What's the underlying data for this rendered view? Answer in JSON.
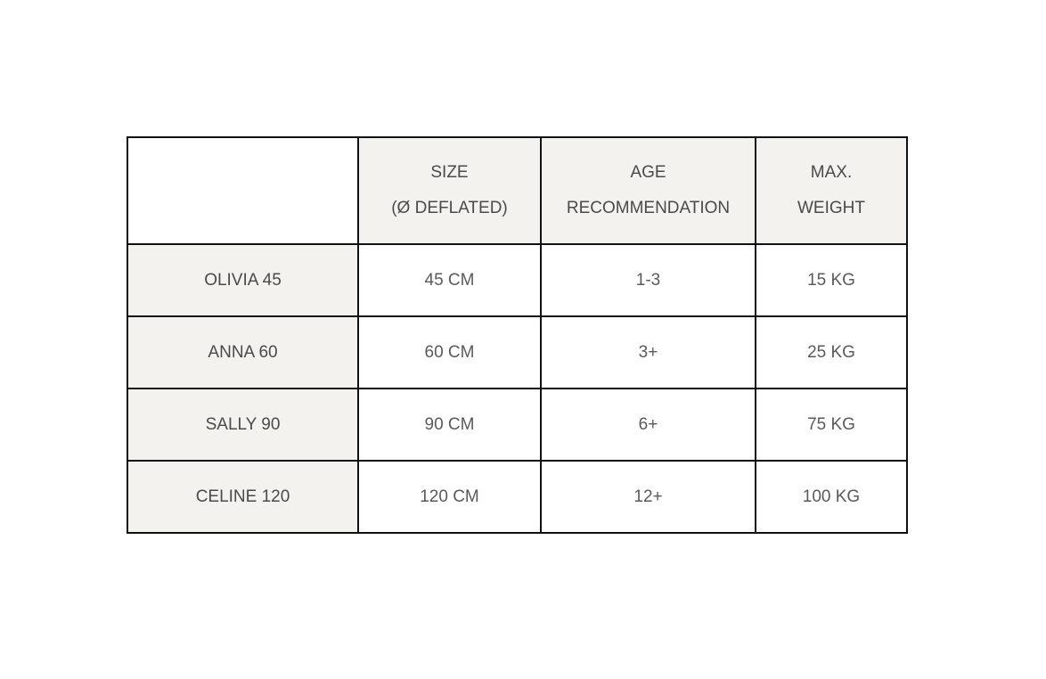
{
  "table": {
    "headers": [
      "",
      "SIZE\n(Ø DEFLATED)",
      "AGE\nRECOMMENDATION",
      "MAX.\nWEIGHT"
    ],
    "header_lines": [
      [],
      [
        "SIZE",
        "(Ø DEFLATED)"
      ],
      [
        "AGE",
        "RECOMMENDATION"
      ],
      [
        "MAX.",
        "WEIGHT"
      ]
    ],
    "rows": [
      [
        "OLIVIA 45",
        "45 CM",
        "1-3",
        "15 KG"
      ],
      [
        "ANNA 60",
        "60 CM",
        "3+",
        "25 KG"
      ],
      [
        "SALLY 90",
        "90 CM",
        "6+",
        "75 KG"
      ],
      [
        "CELINE 120",
        "120 CM",
        "12+",
        "100 KG"
      ]
    ]
  },
  "colors": {
    "shade": "#f3f2ee",
    "border": "#111111",
    "text": "#5a5a5a"
  }
}
